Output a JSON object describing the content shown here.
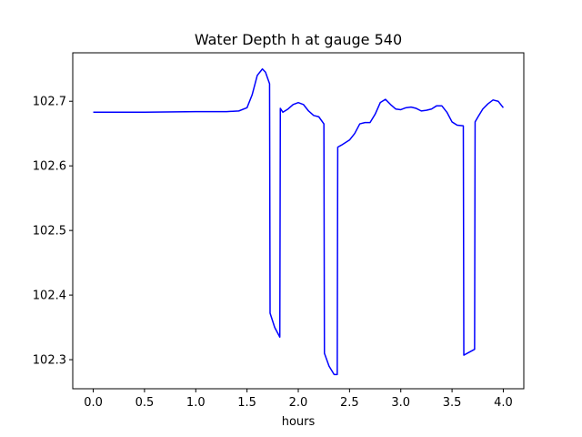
{
  "chart_data": {
    "type": "line",
    "title": "Water Depth h at gauge 540",
    "xlabel": "hours",
    "ylabel": "",
    "xlim": [
      -0.2,
      4.2
    ],
    "ylim": [
      102.255,
      102.775
    ],
    "grid": false,
    "legend": "none",
    "x_ticks": [
      {
        "value": 0.0,
        "label": "0.0"
      },
      {
        "value": 0.5,
        "label": "0.5"
      },
      {
        "value": 1.0,
        "label": "1.0"
      },
      {
        "value": 1.5,
        "label": "1.5"
      },
      {
        "value": 2.0,
        "label": "2.0"
      },
      {
        "value": 2.5,
        "label": "2.5"
      },
      {
        "value": 3.0,
        "label": "3.0"
      },
      {
        "value": 3.5,
        "label": "3.5"
      },
      {
        "value": 4.0,
        "label": "4.0"
      }
    ],
    "y_ticks": [
      {
        "value": 102.3,
        "label": "102.3"
      },
      {
        "value": 102.4,
        "label": "102.4"
      },
      {
        "value": 102.5,
        "label": "102.5"
      },
      {
        "value": 102.6,
        "label": "102.6"
      },
      {
        "value": 102.7,
        "label": "102.7"
      }
    ],
    "series": [
      {
        "color": "#0000ff",
        "points": [
          [
            0.0,
            102.683
          ],
          [
            0.5,
            102.683
          ],
          [
            1.0,
            102.684
          ],
          [
            1.3,
            102.684
          ],
          [
            1.42,
            102.685
          ],
          [
            1.5,
            102.69
          ],
          [
            1.55,
            102.71
          ],
          [
            1.6,
            102.74
          ],
          [
            1.65,
            102.75
          ],
          [
            1.68,
            102.745
          ],
          [
            1.72,
            102.727
          ],
          [
            1.725,
            102.372
          ],
          [
            1.77,
            102.35
          ],
          [
            1.82,
            102.335
          ],
          [
            1.825,
            102.689
          ],
          [
            1.85,
            102.683
          ],
          [
            1.9,
            102.688
          ],
          [
            1.95,
            102.695
          ],
          [
            2.0,
            102.698
          ],
          [
            2.05,
            102.695
          ],
          [
            2.1,
            102.685
          ],
          [
            2.15,
            102.678
          ],
          [
            2.2,
            102.676
          ],
          [
            2.25,
            102.665
          ],
          [
            2.255,
            102.31
          ],
          [
            2.3,
            102.29
          ],
          [
            2.35,
            102.277
          ],
          [
            2.38,
            102.277
          ],
          [
            2.385,
            102.629
          ],
          [
            2.42,
            102.632
          ],
          [
            2.5,
            102.64
          ],
          [
            2.55,
            102.65
          ],
          [
            2.6,
            102.665
          ],
          [
            2.65,
            102.667
          ],
          [
            2.7,
            102.667
          ],
          [
            2.75,
            102.68
          ],
          [
            2.8,
            102.698
          ],
          [
            2.85,
            102.703
          ],
          [
            2.9,
            102.695
          ],
          [
            2.95,
            102.688
          ],
          [
            3.0,
            102.687
          ],
          [
            3.05,
            102.69
          ],
          [
            3.1,
            102.691
          ],
          [
            3.15,
            102.689
          ],
          [
            3.2,
            102.685
          ],
          [
            3.25,
            102.686
          ],
          [
            3.3,
            102.688
          ],
          [
            3.35,
            102.693
          ],
          [
            3.4,
            102.693
          ],
          [
            3.45,
            102.683
          ],
          [
            3.5,
            102.668
          ],
          [
            3.55,
            102.663
          ],
          [
            3.61,
            102.662
          ],
          [
            3.615,
            102.307
          ],
          [
            3.65,
            102.31
          ],
          [
            3.72,
            102.316
          ],
          [
            3.725,
            102.668
          ],
          [
            3.75,
            102.675
          ],
          [
            3.8,
            102.688
          ],
          [
            3.85,
            102.696
          ],
          [
            3.9,
            102.702
          ],
          [
            3.95,
            102.7
          ],
          [
            4.0,
            102.69
          ]
        ]
      }
    ]
  }
}
